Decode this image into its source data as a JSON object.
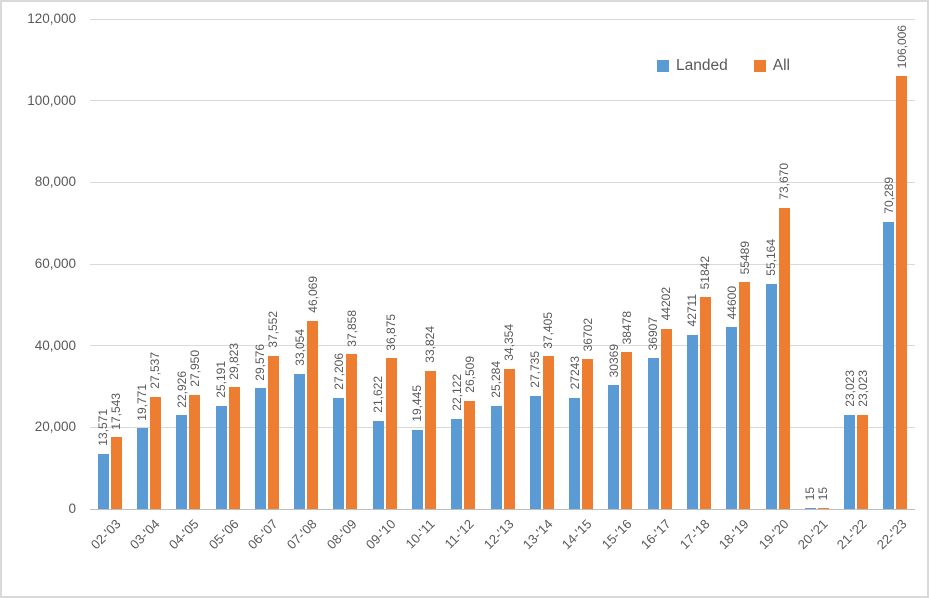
{
  "chart_data": {
    "type": "bar",
    "title": "",
    "xlabel": "",
    "ylabel": "",
    "grid": true,
    "legend_position": "top-right",
    "categories": [
      "02-'03",
      "03-'04",
      "04-'05",
      "05-'06",
      "06-'07",
      "07-'08",
      "08-'09",
      "09-'10",
      "10-'11",
      "11-'12",
      "12-'13",
      "13-'14",
      "14-'15",
      "15-'16",
      "16-'17",
      "17-'18",
      "18-'19",
      "19-'20",
      "20-'21",
      "21-'22",
      "22-'23"
    ],
    "series": [
      {
        "name": "Landed",
        "color": "#5B9BD5",
        "values": [
          13571,
          19771,
          22926,
          25191,
          29576,
          33054,
          27206,
          21622,
          19445,
          22122,
          25284,
          27735,
          27243,
          30369,
          36907,
          42711,
          44600,
          55164,
          15,
          23023,
          70289
        ],
        "labels": [
          "13,571",
          "19,771",
          "22,926",
          "25,191",
          "29,576",
          "33,054",
          "27,206",
          "21,622",
          "19,445",
          "22,122",
          "25,284",
          "27,735",
          "27243",
          "30369",
          "36907",
          "42711",
          "44600",
          "55,164",
          "15",
          "23,023",
          "70,289"
        ]
      },
      {
        "name": "All",
        "color": "#ED7D31",
        "values": [
          17543,
          27537,
          27950,
          29823,
          37552,
          46069,
          37858,
          36875,
          33824,
          26509,
          34354,
          37405,
          36702,
          38478,
          44202,
          51842,
          55489,
          73670,
          15,
          23023,
          106006
        ],
        "labels": [
          "17,543",
          "27,537",
          "27,950",
          "29,823",
          "37,552",
          "46,069",
          "37,858",
          "36,875",
          "33,824",
          "26,509",
          "34,354",
          "37,405",
          "36702",
          "38478",
          "44202",
          "51842",
          "55489",
          "73,670",
          "15",
          "23,023",
          "106,006"
        ]
      }
    ],
    "y_axis": {
      "min": 0,
      "max": 120000,
      "tick_interval": 20000,
      "tick_labels": [
        "0",
        "20,000",
        "40,000",
        "60,000",
        "80,000",
        "100,000",
        "120,000"
      ]
    },
    "data_labels": {
      "rotation": "vertical",
      "color": "#595959"
    }
  },
  "colors": {
    "grid": "#D9D9D9",
    "axis_text": "#595959",
    "border": "#D9D9D9",
    "background": "#FFFFFF"
  }
}
